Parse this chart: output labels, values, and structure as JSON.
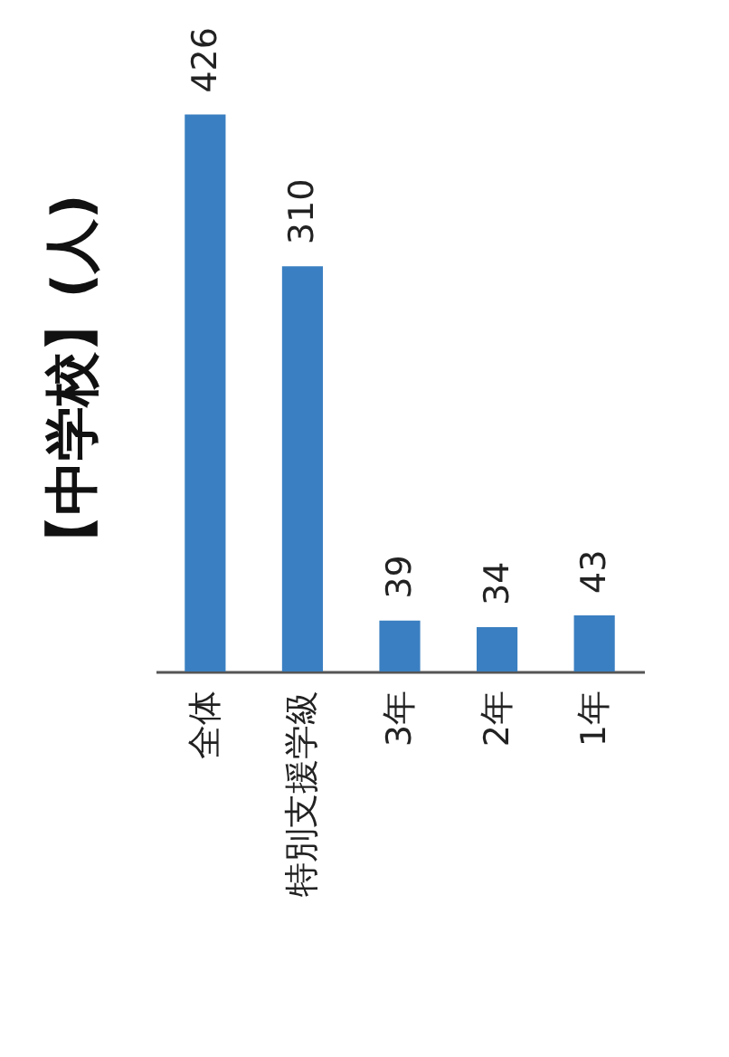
{
  "chart_data": {
    "type": "bar",
    "title": "【中学校】(人)",
    "categories": [
      "全体",
      "特別支援学級",
      "3年",
      "2年",
      "1年"
    ],
    "values": [
      426,
      310,
      39,
      34,
      43
    ],
    "color": "#3a7fc1",
    "data_labels": true
  }
}
